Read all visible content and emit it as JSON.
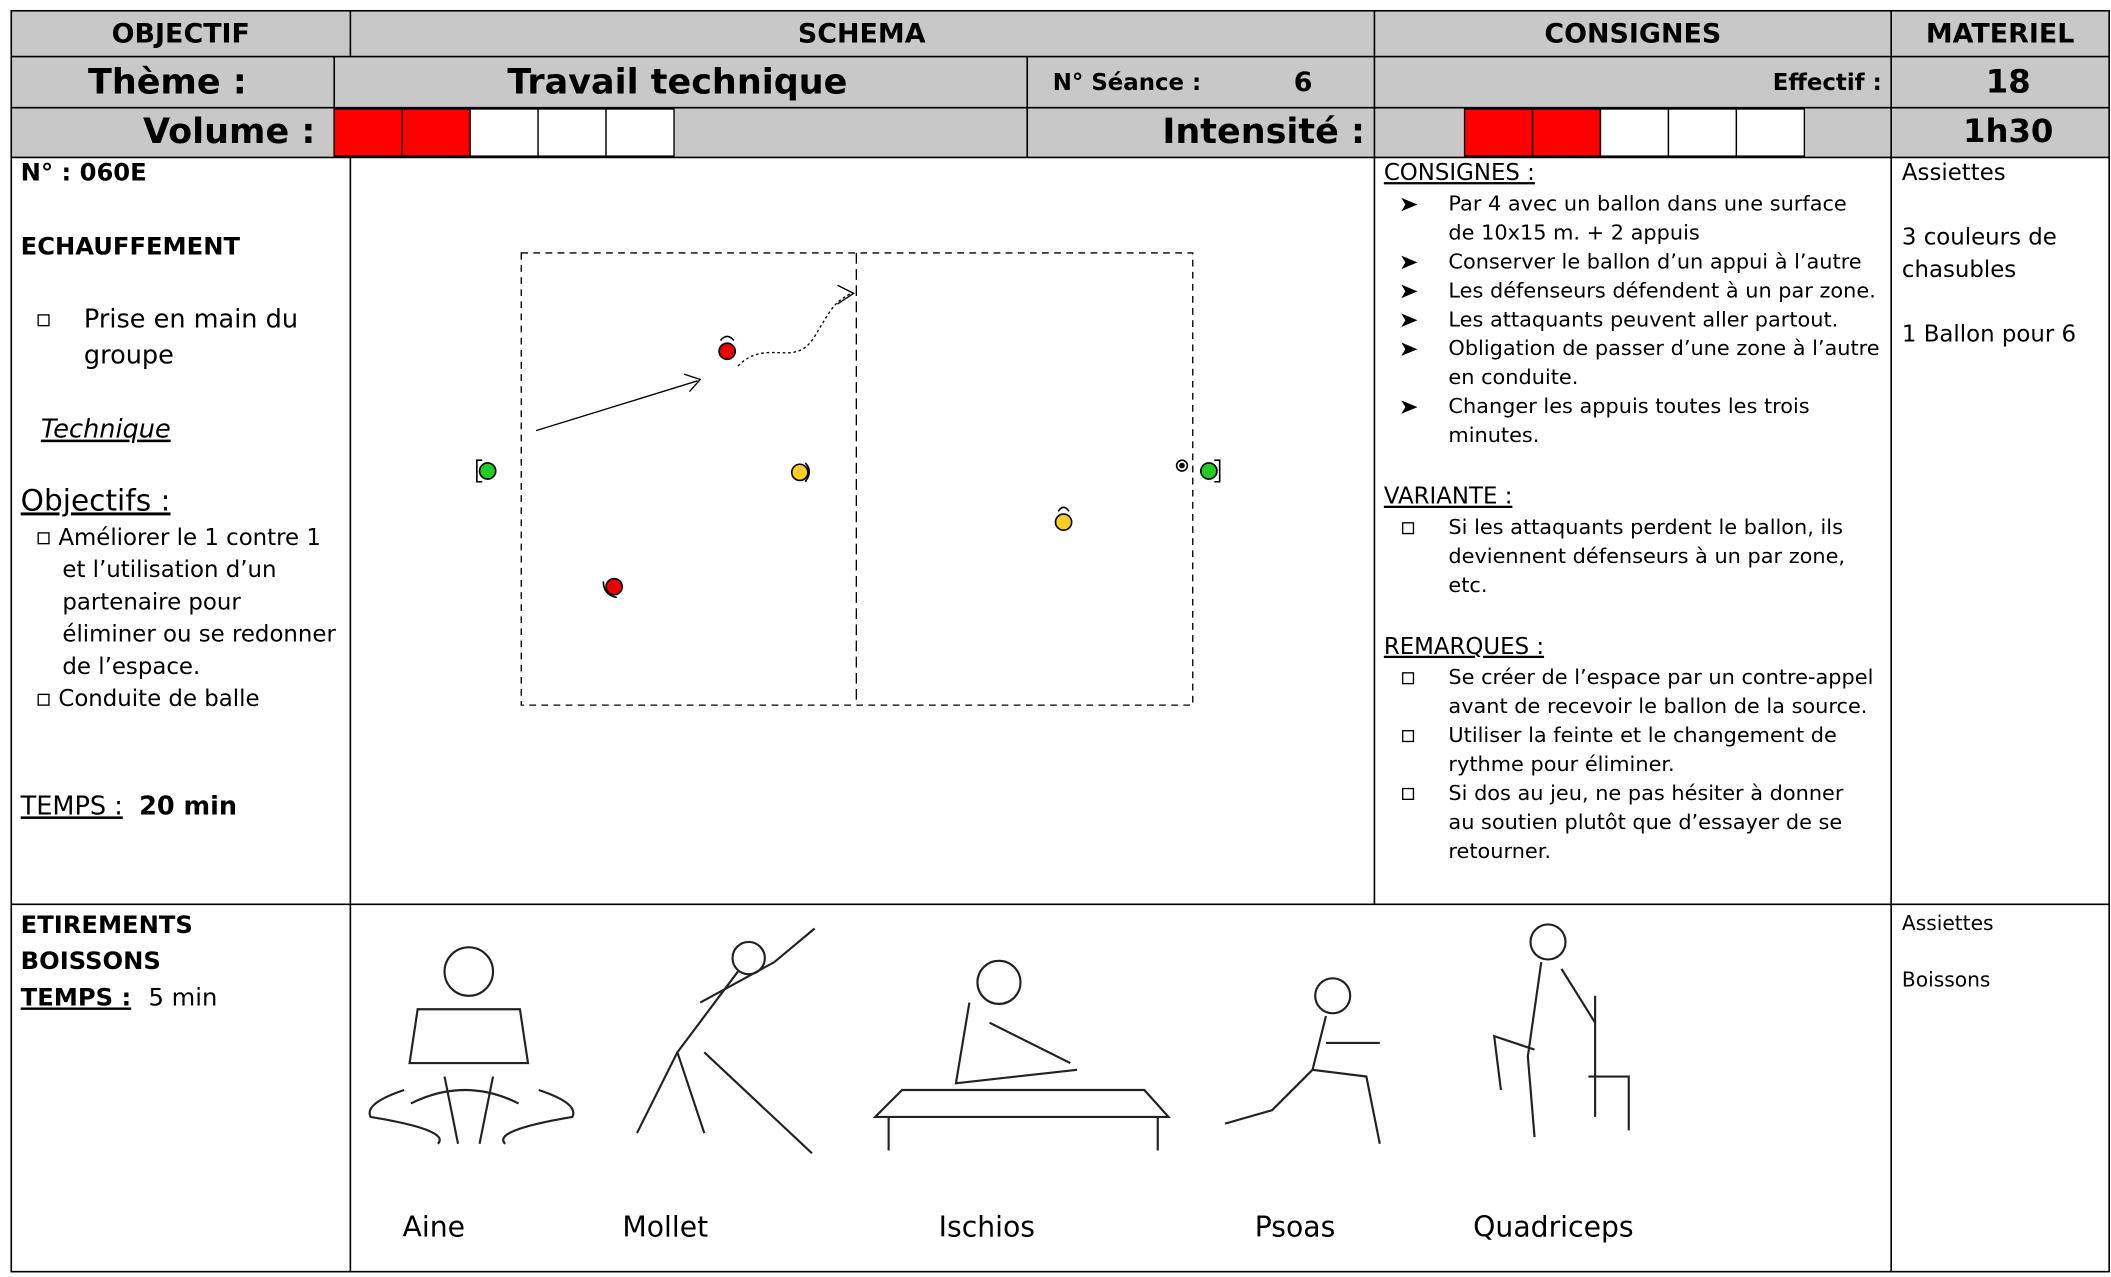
{
  "header": {
    "columns": [
      "OBJECTIF",
      "SCHEMA",
      "CONSIGNES",
      "MATERIEL"
    ]
  },
  "theme": {
    "label": "Thème :",
    "value": "Travail technique",
    "seance_label": "N° Séance :",
    "seance": 6,
    "effectif_label": "Effectif :",
    "effectif": 18
  },
  "volume": {
    "label": "Volume :",
    "level": 2,
    "scale": 5,
    "intensity_label": "Intensité :",
    "intensity_level": 2,
    "intensity_scale": 5,
    "duration": "1h30"
  },
  "exercise": {
    "number": "N° : 060E",
    "phase": "ECHAUFFEMENT",
    "items": [
      [
        "Prise en main du",
        "groupe"
      ]
    ],
    "type": "Technique",
    "objectives_title": "Objectifs :",
    "objectives": [
      [
        "Améliorer le 1 contre 1",
        "et l’utilisation d’un",
        "partenaire pour",
        "éliminer ou se redonner",
        "de l’espace."
      ],
      [
        "Conduite de balle"
      ]
    ],
    "time_label": "TEMPS :",
    "time": "20 min",
    "sections": [
      {
        "title": "CONSIGNES :",
        "marker": "arrow",
        "items": [
          [
            "Par 4 avec un ballon dans une surface",
            "de 10x15 m. + 2 appuis"
          ],
          [
            "Conserver le ballon d’un appui à l’autre"
          ],
          [
            "Les défenseurs défendent à un par zone."
          ],
          [
            "Les attaquants peuvent aller partout."
          ],
          [
            "Obligation de passer d’une zone à l’autre",
            "en conduite."
          ],
          [
            "Changer les appuis toutes les trois",
            "minutes."
          ]
        ]
      },
      {
        "title": "VARIANTE :",
        "marker": "square",
        "items": [
          [
            "Si les attaquants perdent le ballon, ils",
            "deviennent défenseurs à un par zone,",
            "etc."
          ]
        ]
      },
      {
        "title": "REMARQUES :",
        "marker": "square",
        "items": [
          [
            "Se créer de l’espace par un contre-appel",
            "avant de recevoir le ballon de la source."
          ],
          [
            "Utiliser la feinte et le changement de",
            "rythme pour éliminer."
          ],
          [
            "Si dos au jeu, ne pas hésiter à donner",
            "au soutien plutôt que d’essayer de se",
            "retourner."
          ]
        ]
      }
    ],
    "materiel": [
      [
        "Assiettes"
      ],
      [
        "3  couleurs de",
        "chasubles"
      ],
      [
        "1 Ballon pour 6"
      ]
    ]
  },
  "stretching": {
    "title": [
      "ETIREMENTS",
      "BOISSONS"
    ],
    "time_label": "TEMPS :",
    "time": "5 min",
    "labels": [
      "Aine",
      "Mollet",
      "Ischios",
      "Psoas",
      "Quadriceps"
    ],
    "materiel": [
      "Assiettes",
      "Boissons"
    ]
  }
}
